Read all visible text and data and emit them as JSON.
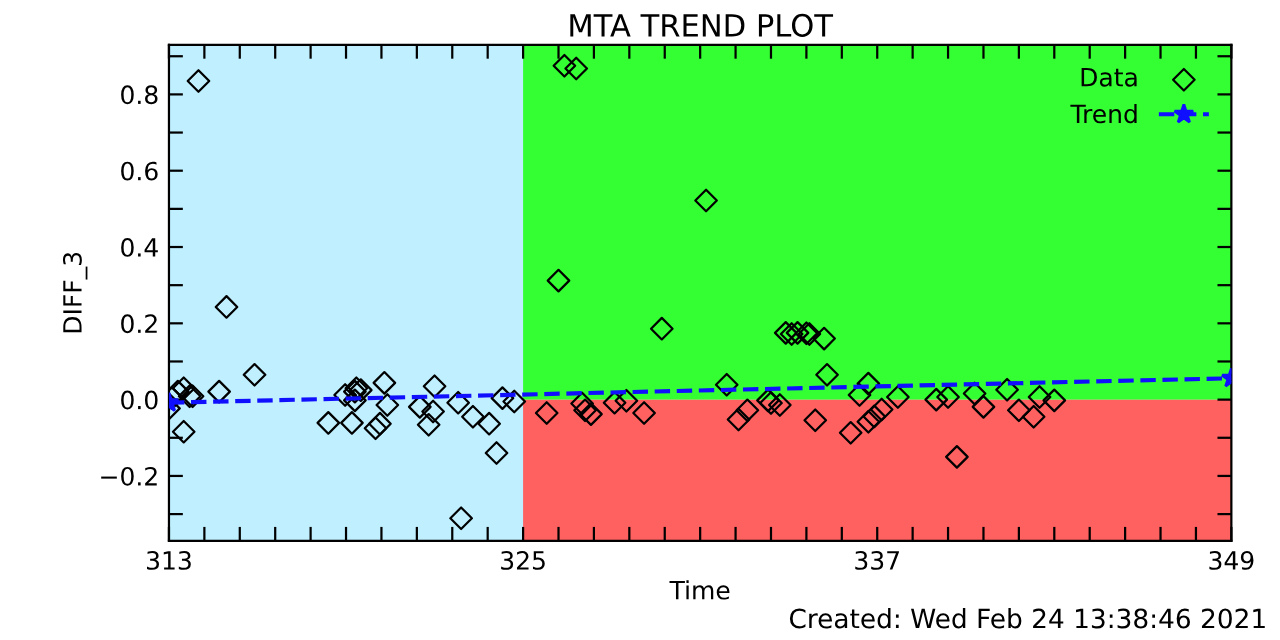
{
  "chart_data": {
    "type": "scatter",
    "title": "MTA TREND PLOT",
    "xlabel": "Time",
    "ylabel": "DIFF_3",
    "annotations": [
      "Created: Wed Feb 24 13:38:46 2021"
    ],
    "xlim": [
      313,
      349
    ],
    "ylim": [
      -0.37,
      0.93
    ],
    "xticks": [
      313,
      {
        "value": 314.2,
        "label": null
      },
      {
        "value": 315.4,
        "label": null
      },
      {
        "value": 316.6,
        "label": null
      },
      {
        "value": 317.8,
        "label": null
      },
      {
        "value": 319,
        "label": null
      },
      {
        "value": 320.2,
        "label": null
      },
      {
        "value": 321.4,
        "label": null
      },
      {
        "value": 322.6,
        "label": null
      },
      {
        "value": 323.8,
        "label": null
      },
      325,
      {
        "value": 326.2,
        "label": null
      },
      {
        "value": 327.4,
        "label": null
      },
      {
        "value": 328.6,
        "label": null
      },
      {
        "value": 329.8,
        "label": null
      },
      {
        "value": 331,
        "label": null
      },
      {
        "value": 332.2,
        "label": null
      },
      {
        "value": 333.4,
        "label": null
      },
      {
        "value": 334.6,
        "label": null
      },
      {
        "value": 335.8,
        "label": null
      },
      337,
      {
        "value": 338.2,
        "label": null
      },
      {
        "value": 339.4,
        "label": null
      },
      {
        "value": 340.6,
        "label": null
      },
      {
        "value": 341.8,
        "label": null
      },
      {
        "value": 343,
        "label": null
      },
      {
        "value": 344.2,
        "label": null
      },
      {
        "value": 345.4,
        "label": null
      },
      {
        "value": 346.6,
        "label": null
      },
      {
        "value": 347.8,
        "label": null
      },
      349
    ],
    "yticks": [
      {
        "value": -0.3,
        "label": null
      },
      {
        "value": -0.2,
        "label": "−0.2"
      },
      {
        "value": -0.1,
        "label": null
      },
      {
        "value": 0,
        "label": "0.0"
      },
      {
        "value": 0.1,
        "label": null
      },
      {
        "value": 0.2,
        "label": "0.2"
      },
      {
        "value": 0.3,
        "label": null
      },
      {
        "value": 0.4,
        "label": "0.4"
      },
      {
        "value": 0.5,
        "label": null
      },
      {
        "value": 0.6,
        "label": "0.6"
      },
      {
        "value": 0.7,
        "label": null
      },
      {
        "value": 0.8,
        "label": "0.8"
      },
      {
        "value": 0.9,
        "label": null
      }
    ],
    "bands": [
      {
        "axis": "y",
        "from": 0,
        "to": 0.93,
        "color": "#33ff33"
      },
      {
        "axis": "y",
        "from": -0.37,
        "to": 0,
        "color": "#ff6060"
      },
      {
        "axis": "x",
        "from": 313,
        "to": 325,
        "color": "#c0f0ff"
      }
    ],
    "grid": false,
    "legend": "top right",
    "series": [
      {
        "name": "Data",
        "marker": "diamond",
        "color": "#000000",
        "x": [
          314.0,
          314.95,
          315.9,
          313.0,
          313.1,
          313.3,
          313.5,
          313.7,
          313.8,
          313.5,
          314.7,
          318.4,
          318.97,
          319.2,
          319.3,
          319.35,
          319.5,
          319.3,
          320.0,
          320.15,
          320.3,
          320.4,
          321.5,
          321.8,
          322.0,
          321.95,
          322.8,
          323.3,
          323.85,
          324.1,
          322.9,
          324.3,
          324.7,
          326.4,
          326.8,
          326.2,
          331.2,
          329.7,
          325.8,
          327.0,
          327.1,
          327.3,
          328.1,
          328.5,
          329.1,
          331.9,
          332.3,
          332.6,
          333.3,
          333.4,
          333.7,
          333.9,
          334.1,
          334.3,
          334.6,
          334.7,
          335.2,
          335.3,
          334.9,
          336.1,
          336.4,
          336.7,
          336.7,
          336.9,
          337.15,
          337.7,
          339.0,
          339.4,
          339.7,
          340.3,
          340.6,
          341.4,
          341.8,
          342.3,
          342.5,
          343.0
        ],
        "values": [
          0.835,
          0.243,
          0.065,
          -0.023,
          0.004,
          0.021,
          0.03,
          0.009,
          0.009,
          -0.084,
          0.021,
          -0.061,
          0.012,
          -0.061,
          0.021,
          0.03,
          0.025,
          -0.002,
          -0.075,
          -0.063,
          0.044,
          -0.014,
          -0.019,
          -0.066,
          0.035,
          -0.031,
          -0.008,
          -0.045,
          -0.063,
          -0.14,
          -0.311,
          0.004,
          -0.005,
          0.875,
          0.868,
          0.312,
          0.522,
          0.186,
          -0.035,
          -0.01,
          -0.028,
          -0.038,
          -0.008,
          -0.003,
          -0.035,
          0.039,
          -0.052,
          -0.028,
          -0.002,
          -0.009,
          -0.014,
          0.175,
          0.172,
          0.175,
          0.174,
          0.172,
          0.16,
          0.065,
          -0.054,
          -0.087,
          0.012,
          0.042,
          -0.058,
          -0.044,
          -0.026,
          0.007,
          0.0,
          0.007,
          -0.15,
          0.016,
          -0.019,
          0.026,
          -0.028,
          -0.045,
          0.007,
          -0.002
        ]
      },
      {
        "name": "Trend",
        "type": "line",
        "marker": "star",
        "line_style": "dashed",
        "color": "#1010ff",
        "x": [
          313,
          349
        ],
        "values": [
          -0.008,
          0.056
        ]
      }
    ]
  }
}
